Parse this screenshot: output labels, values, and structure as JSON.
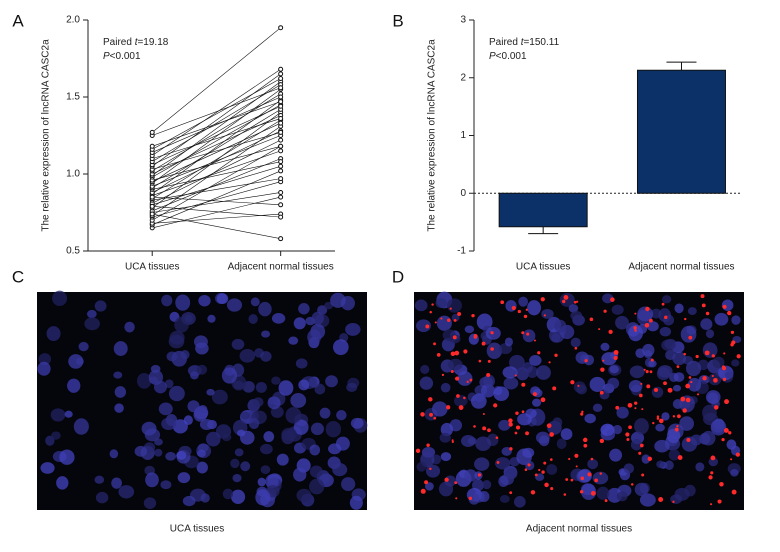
{
  "chart_data": [
    {
      "type": "paired",
      "panel": "A",
      "ylabel": "The relative expression of lncRNA CASC2a",
      "categories": [
        "UCA tissues",
        "Adjacent normal tissues"
      ],
      "annotation": [
        [
          {
            "text": "Paired ",
            "italic": false
          },
          {
            "text": "t",
            "italic": true
          },
          {
            "text": "=19.18",
            "italic": false
          }
        ],
        [
          {
            "text": "P",
            "italic": true
          },
          {
            "text": "<0.001",
            "italic": false
          }
        ]
      ],
      "color": "#111111",
      "ylim": [
        0.5,
        2.0
      ],
      "yticks": [
        0.5,
        {
          "value": 1.0,
          "label": "1.0"
        },
        1.5,
        {
          "value": 2.0,
          "label": "2.0"
        }
      ],
      "series": [
        {
          "values": [
            0.65,
            0.85
          ]
        },
        {
          "values": [
            0.67,
            1.02
          ]
        },
        {
          "values": [
            0.68,
            0.74
          ]
        },
        {
          "values": [
            0.7,
            1.18
          ]
        },
        {
          "values": [
            0.72,
            0.95
          ]
        },
        {
          "values": [
            0.73,
            1.31
          ]
        },
        {
          "values": [
            0.75,
            0.88
          ]
        },
        {
          "values": [
            0.76,
            1.1
          ]
        },
        {
          "values": [
            0.78,
            1.4
          ]
        },
        {
          "values": [
            0.8,
            1.05
          ]
        },
        {
          "values": [
            0.81,
            1.22
          ]
        },
        {
          "values": [
            0.83,
            0.97
          ]
        },
        {
          "values": [
            0.84,
            1.35
          ]
        },
        {
          "values": [
            0.86,
            1.15
          ]
        },
        {
          "values": [
            0.87,
            1.48
          ]
        },
        {
          "values": [
            0.88,
            1.28
          ]
        },
        {
          "values": [
            0.9,
            1.08
          ]
        },
        {
          "values": [
            0.91,
            1.42
          ]
        },
        {
          "values": [
            0.92,
            1.25
          ]
        },
        {
          "values": [
            0.94,
            1.55
          ]
        },
        {
          "values": [
            0.95,
            1.33
          ]
        },
        {
          "values": [
            0.96,
            1.18
          ]
        },
        {
          "values": [
            0.98,
            1.45
          ]
        },
        {
          "values": [
            0.99,
            1.6
          ]
        },
        {
          "values": [
            1.0,
            1.38
          ]
        },
        {
          "values": [
            1.02,
            1.52
          ]
        },
        {
          "values": [
            1.03,
            1.27
          ]
        },
        {
          "values": [
            1.05,
            1.65
          ]
        },
        {
          "values": [
            1.06,
            1.44
          ]
        },
        {
          "values": [
            1.08,
            1.58
          ]
        },
        {
          "values": [
            1.1,
            1.36
          ]
        },
        {
          "values": [
            1.12,
            1.68
          ]
        },
        {
          "values": [
            1.14,
            1.5
          ]
        },
        {
          "values": [
            1.16,
            1.62
          ]
        },
        {
          "values": [
            1.18,
            1.47
          ]
        },
        {
          "values": [
            1.25,
            1.56
          ]
        },
        {
          "values": [
            1.27,
            1.95
          ]
        },
        {
          "values": [
            0.74,
            0.58
          ]
        },
        {
          "values": [
            0.79,
            0.72
          ]
        },
        {
          "values": [
            0.85,
            0.8
          ]
        }
      ]
    },
    {
      "type": "bar",
      "panel": "B",
      "ylabel": "The relative expression of lncRNA CASC2a",
      "categories": [
        "UCA tissues",
        "Adjacent normal tissues"
      ],
      "annotation": [
        [
          {
            "text": "Paired ",
            "italic": false
          },
          {
            "text": "t",
            "italic": true
          },
          {
            "text": "=150.11",
            "italic": false
          }
        ],
        [
          {
            "text": "P",
            "italic": true
          },
          {
            "text": "<0.001",
            "italic": false
          }
        ]
      ],
      "color": "#0b3168",
      "values": [
        -0.58,
        2.13
      ],
      "errors": [
        0.12,
        0.14
      ],
      "ylim": [
        -1,
        3
      ],
      "yticks": [
        -1,
        0,
        1,
        2,
        3
      ]
    }
  ],
  "images": [
    {
      "panel": "C",
      "caption": "UCA tissues"
    },
    {
      "panel": "D",
      "caption": "Adjacent normal tissues"
    }
  ]
}
